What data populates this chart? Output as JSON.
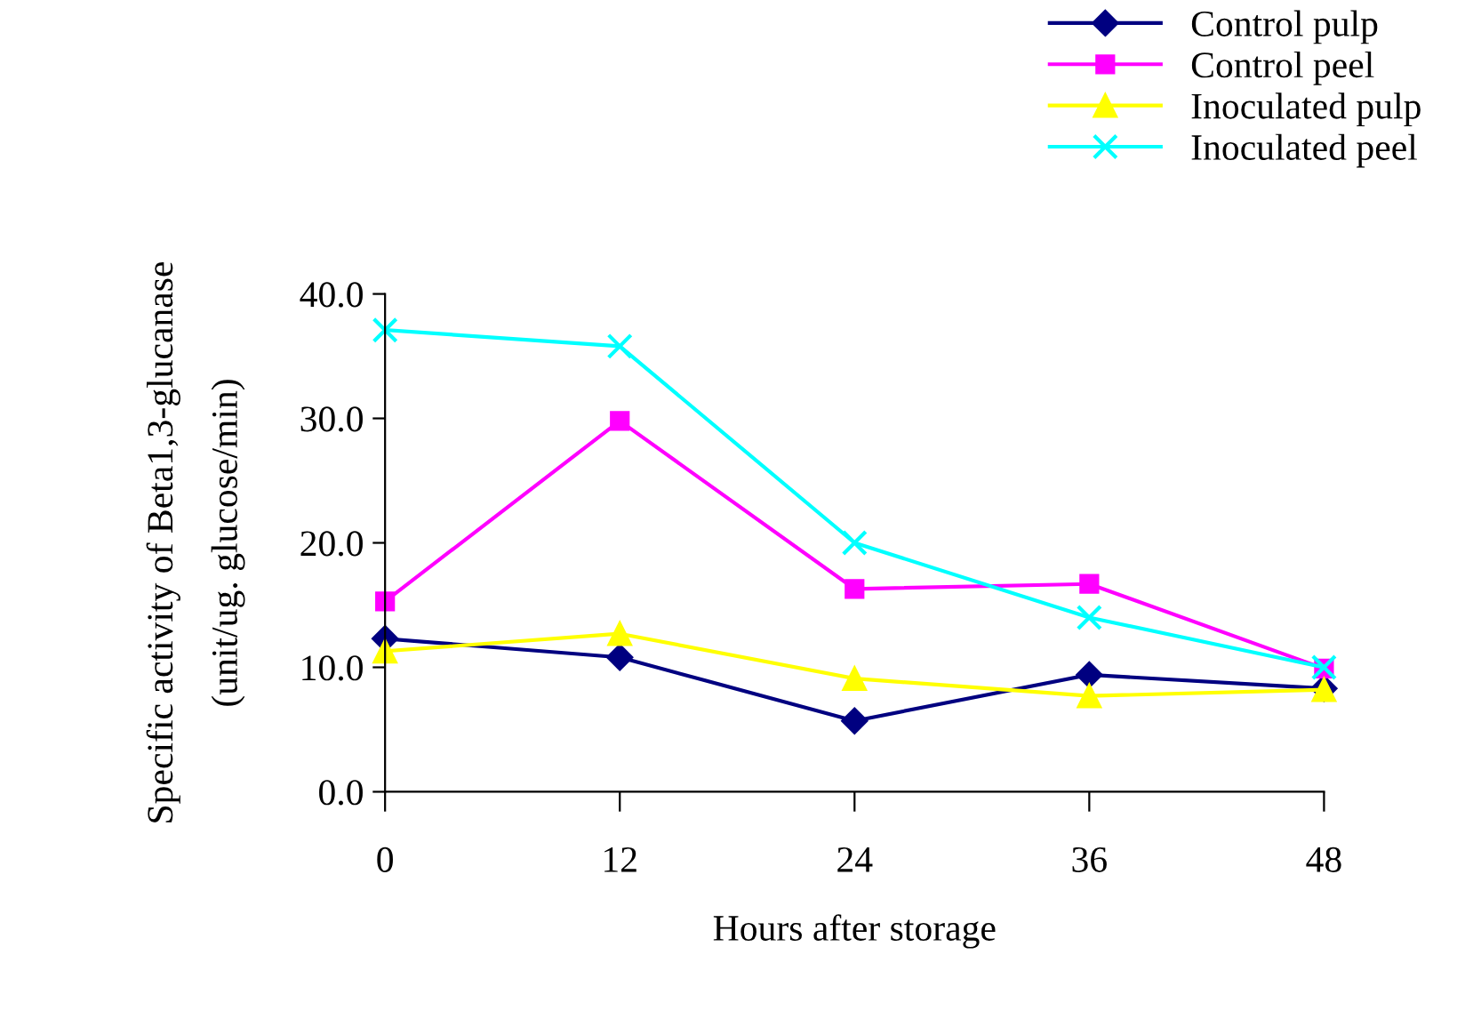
{
  "chart_data": {
    "type": "line",
    "xlabel": "Hours after storage",
    "ylabel": "Specific activity of Beta1,3-glucanase\n(unit/ug. glucose/min)",
    "x": [
      0,
      12,
      24,
      36,
      48
    ],
    "xlim": [
      0,
      48
    ],
    "xticks": [
      0,
      12,
      24,
      36,
      48
    ],
    "ylim": [
      0,
      40
    ],
    "yticks": [
      {
        "value": 0,
        "label": "0.0"
      },
      {
        "value": 10,
        "label": "10.0"
      },
      {
        "value": 20,
        "label": "20.0"
      },
      {
        "value": 30,
        "label": "30.0"
      },
      {
        "value": 40,
        "label": "40.0"
      }
    ],
    "grid": false,
    "legend": "top right",
    "line_style": "solid",
    "series": [
      {
        "name": "Control pulp",
        "color": "#000080",
        "marker": "diamond",
        "values": [
          12.3,
          10.8,
          5.7,
          9.4,
          8.3
        ]
      },
      {
        "name": "Control peel",
        "color": "#ff00ff",
        "marker": "square",
        "values": [
          15.3,
          29.8,
          16.3,
          16.7,
          9.9
        ]
      },
      {
        "name": "Inoculated pulp",
        "color": "#ffff00",
        "marker": "triangle",
        "values": [
          11.3,
          12.7,
          9.1,
          7.7,
          8.2
        ]
      },
      {
        "name": "Inoculated peel",
        "color": "#00ffff",
        "marker": "cross",
        "values": [
          37.1,
          35.8,
          20.0,
          14.0,
          10.0
        ]
      }
    ]
  }
}
